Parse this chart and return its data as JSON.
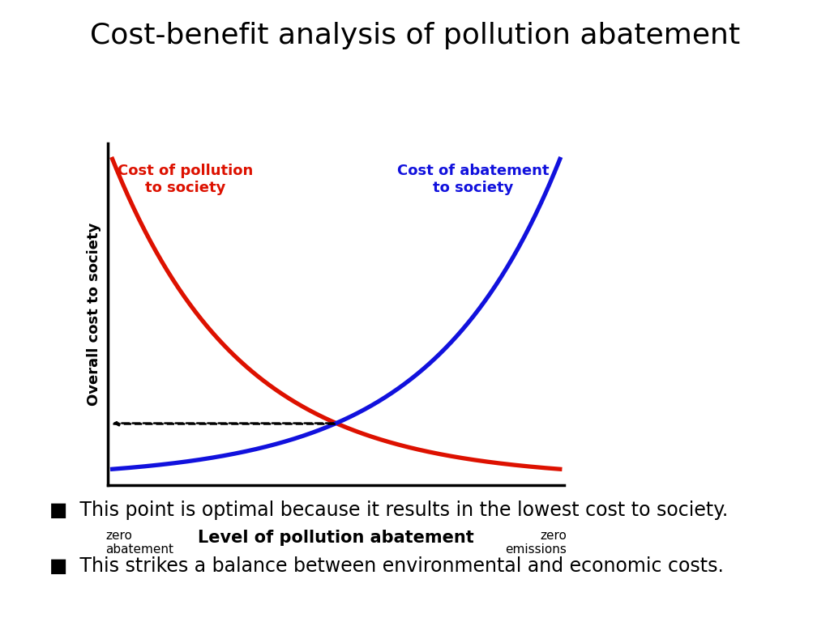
{
  "title": "Cost-benefit analysis of pollution abatement",
  "title_fontsize": 26,
  "ylabel": "Overall cost to society",
  "ylabel_fontsize": 13,
  "xlabel": "Level of pollution abatement",
  "xlabel_fontsize": 15,
  "pollution_label": "Cost of pollution\nto society",
  "pollution_label_color": "#dd1100",
  "abatement_label": "Cost of abatement\nto society",
  "abatement_label_color": "#1111dd",
  "pollution_color": "#dd1100",
  "abatement_color": "#1111dd",
  "line_width": 3.8,
  "dashed_color": "#000000",
  "background_color": "#ffffff",
  "bullet1": "This point is optimal because it results in the lowest cost to society.",
  "bullet2": "This strikes a balance between environmental and economic costs.",
  "bullet_fontsize": 17,
  "x_left_label": "zero\nabatement",
  "x_right_label": "zero\nemissions",
  "exp_rate": 3.5
}
